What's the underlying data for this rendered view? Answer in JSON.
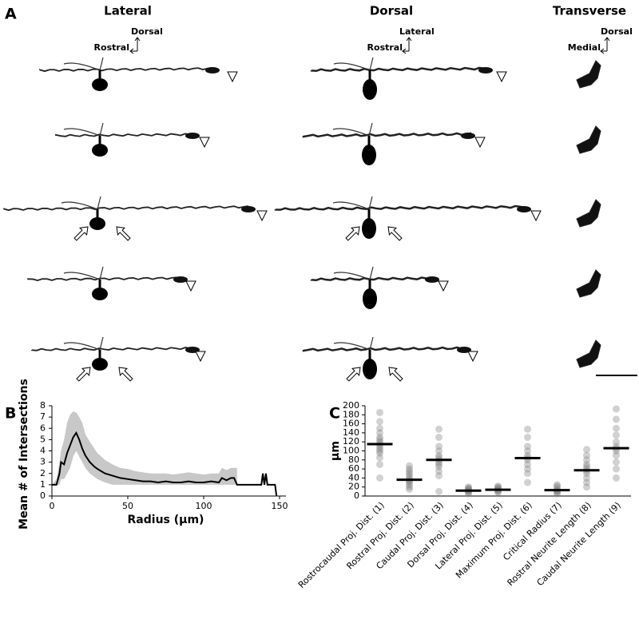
{
  "panels": {
    "a": "A",
    "b": "B",
    "c": "C"
  },
  "views": [
    "Lateral",
    "Dorsal",
    "Transverse"
  ],
  "orientation": [
    {
      "up": "Dorsal",
      "left": "Rostral"
    },
    {
      "up": "Lateral",
      "left": "Rostral"
    },
    {
      "up": "Dorsal",
      "left": "Medial"
    }
  ],
  "chart_data": [
    {
      "type": "line",
      "x_label": "Radius (µm)",
      "y_label": "Mean # of Intersections",
      "x": [
        0,
        3,
        5,
        6,
        8,
        10,
        12,
        14,
        16,
        18,
        20,
        22,
        25,
        28,
        30,
        35,
        40,
        45,
        50,
        55,
        60,
        65,
        70,
        75,
        80,
        85,
        90,
        95,
        100,
        105,
        110,
        112,
        115,
        118,
        120,
        122,
        138,
        139,
        140,
        141,
        142,
        147,
        148
      ],
      "values": [
        1,
        1,
        2,
        3,
        2.8,
        3.8,
        4.5,
        5.2,
        5.6,
        5,
        4.2,
        3.6,
        3,
        2.6,
        2.4,
        2,
        1.8,
        1.6,
        1.5,
        1.4,
        1.3,
        1.3,
        1.2,
        1.3,
        1.2,
        1.2,
        1.3,
        1.2,
        1.2,
        1.3,
        1.2,
        1.6,
        1.4,
        1.6,
        1.6,
        1,
        1,
        2,
        1,
        2,
        1,
        1,
        0
      ],
      "band_low": [
        1,
        1,
        1,
        1.5,
        1.5,
        2,
        2.5,
        3.5,
        4,
        3.5,
        3,
        2.5,
        2,
        1.7,
        1.5,
        1.2,
        1,
        1,
        1,
        1,
        1,
        1,
        1,
        1,
        1,
        1,
        1,
        1,
        1,
        1,
        1,
        1,
        1,
        1,
        1,
        1,
        null,
        null,
        null,
        null,
        null,
        null,
        null
      ],
      "band_high": [
        1,
        1.5,
        3,
        4,
        5,
        6.5,
        7.2,
        7.5,
        7.4,
        7,
        6.5,
        5.5,
        4.8,
        4.2,
        3.8,
        3.2,
        2.8,
        2.5,
        2.4,
        2.2,
        2.1,
        2,
        2,
        2,
        1.9,
        2,
        2.1,
        2,
        1.9,
        2,
        2,
        2.5,
        2.3,
        2.5,
        2.5,
        2.5,
        null,
        null,
        null,
        null,
        null,
        null,
        null
      ],
      "color": "#000000",
      "band_color": "#c8c8c8",
      "xlim": [
        0,
        150
      ],
      "xticks": [
        0,
        50,
        100,
        150
      ],
      "ylim": [
        0,
        8
      ],
      "yticks": [
        0,
        1,
        2,
        3,
        4,
        5,
        6,
        7,
        8
      ]
    },
    {
      "type": "strip",
      "y_label": "µm",
      "categories": [
        "Rostrocaudal Proj. Dist. (1)",
        "Rostral Proj. Dist. (2)",
        "Caudal Proj. Dist. (3)",
        "Dorsal Proj. Dist. (4)",
        "Lateral Proj. Dist. (5)",
        "Maximum Proj. Dist. (6)",
        "Critical Radius (7)",
        "Rostral Neurite Length (8)",
        "Caudal Neurite Length (9)"
      ],
      "values": [
        115,
        36,
        80,
        12,
        14,
        84,
        13,
        57,
        106
      ],
      "points": [
        [
          40,
          70,
          85,
          95,
          100,
          105,
          110,
          115,
          120,
          125,
          130,
          140,
          150,
          165,
          185
        ],
        [
          15,
          20,
          25,
          30,
          33,
          36,
          40,
          45,
          50,
          55,
          60,
          67
        ],
        [
          10,
          45,
          55,
          65,
          70,
          75,
          80,
          85,
          90,
          100,
          110,
          130,
          148
        ],
        [
          5,
          8,
          10,
          12,
          14,
          16,
          18,
          20
        ],
        [
          8,
          10,
          12,
          14,
          16,
          18,
          20,
          22
        ],
        [
          30,
          50,
          60,
          70,
          80,
          85,
          90,
          100,
          110,
          130,
          148
        ],
        [
          5,
          8,
          10,
          12,
          14,
          18,
          22,
          25
        ],
        [
          20,
          30,
          40,
          50,
          55,
          60,
          65,
          70,
          80,
          90,
          103
        ],
        [
          40,
          60,
          75,
          90,
          100,
          105,
          110,
          120,
          135,
          150,
          170,
          193
        ]
      ],
      "color": "#7a7a7a",
      "mean_color": "#000000",
      "ylim": [
        0,
        200
      ],
      "yticks": [
        0,
        20,
        40,
        60,
        80,
        100,
        120,
        140,
        160,
        180,
        200
      ]
    }
  ]
}
